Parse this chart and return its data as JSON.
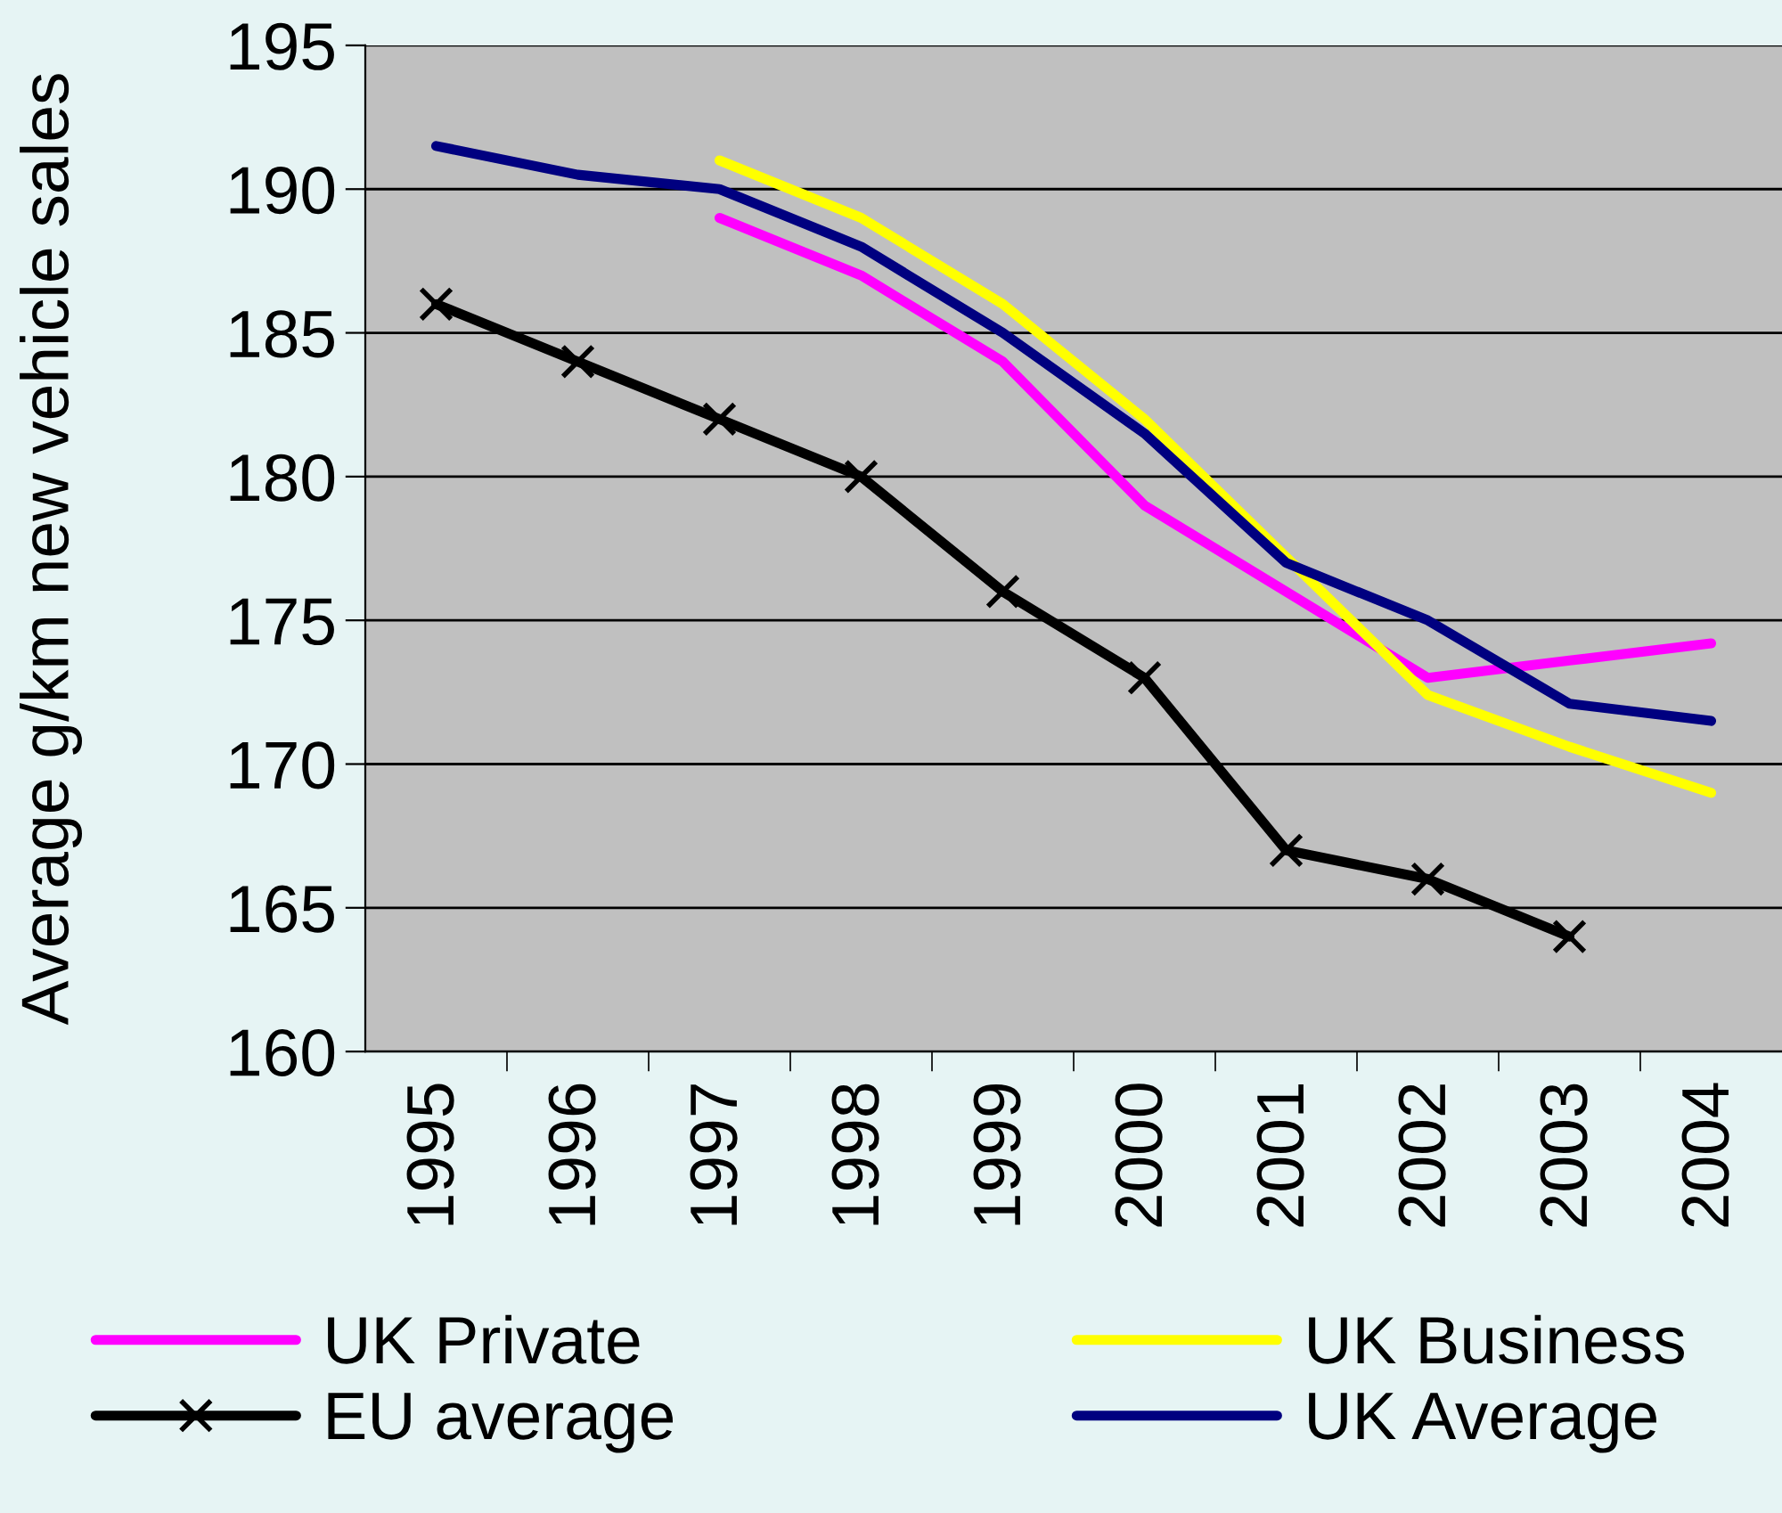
{
  "chart_data": {
    "type": "line",
    "ylabel": "Average g/km new vehicle sales",
    "categories": [
      "1995",
      "1996",
      "1997",
      "1998",
      "1999",
      "2000",
      "2001",
      "2002",
      "2003",
      "2004"
    ],
    "ylim": [
      160,
      195
    ],
    "yticks": [
      160,
      165,
      170,
      175,
      180,
      185,
      190,
      195
    ],
    "grid": "y",
    "legend": "bottom",
    "series": [
      {
        "name": "UK Private",
        "color": "#ff00ff",
        "marker": "none",
        "values": [
          null,
          null,
          189,
          187,
          184,
          179,
          176,
          173,
          173.6,
          174.2
        ]
      },
      {
        "name": "UK Business",
        "color": "#ffff00",
        "marker": "none",
        "values": [
          null,
          null,
          191,
          189,
          186,
          182,
          177.2,
          172.4,
          170.6,
          169
        ]
      },
      {
        "name": "EU average",
        "color": "#000000",
        "marker": "cross",
        "values": [
          186,
          184,
          182,
          180,
          176,
          173,
          167,
          166,
          164,
          null
        ]
      },
      {
        "name": "UK Average",
        "color": "#000080",
        "marker": "none",
        "values": [
          191.5,
          190.5,
          190,
          188,
          185,
          181.5,
          177,
          175,
          172.1,
          171.5
        ]
      }
    ]
  }
}
